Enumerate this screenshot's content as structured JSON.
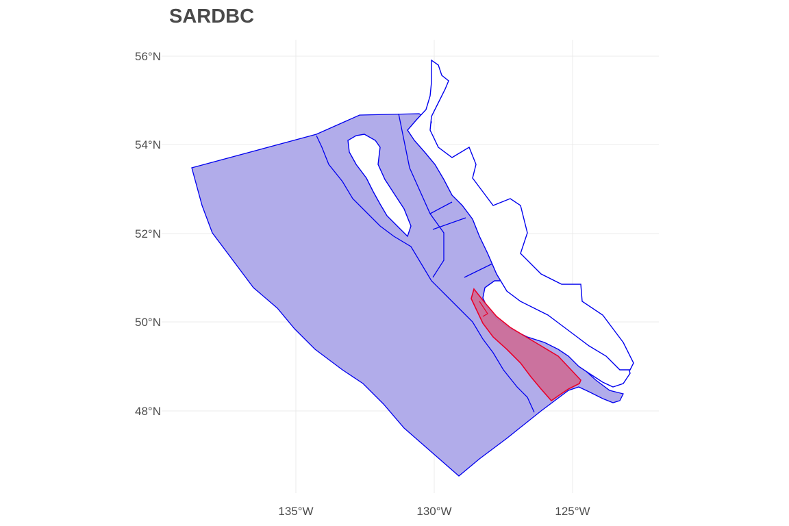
{
  "map": {
    "title": "SARDBC",
    "y_ticks": [
      "56°N",
      "54°N",
      "52°N",
      "50°N",
      "48°N"
    ],
    "x_ticks": [
      "135°W",
      "130°W",
      "125°W"
    ],
    "colors": {
      "region_fill": "#b1acea",
      "region_stroke": "#0000ee",
      "highlight_fill": "#cc6f9a",
      "highlight_stroke": "#e8002a",
      "grid": "#ebebeb",
      "text": "#4d4d4d"
    }
  }
}
